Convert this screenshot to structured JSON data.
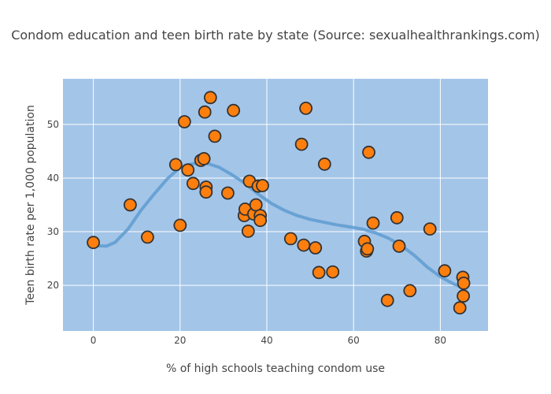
{
  "chart_data": {
    "type": "scatter",
    "title": "Condom education and teen birth rate by state (Source: sexualhealthrankings.com)",
    "xlabel": "% of high schools teaching condom use",
    "ylabel": "Teen birth rate per 1,000 population",
    "xlim": [
      -7,
      91
    ],
    "ylim": [
      11.5,
      58.5
    ],
    "x_ticks": [
      0,
      20,
      40,
      60,
      80
    ],
    "y_ticks": [
      20,
      30,
      40,
      50
    ],
    "grid": true,
    "legend": "none",
    "colors": {
      "plot_bg": "#a3c5e8",
      "grid": "#ffffff",
      "marker_fill": "#ff7f0e",
      "marker_stroke": "#333333",
      "trend": "#5f9bd0"
    },
    "series": [
      {
        "type": "scatter",
        "points": [
          [
            0,
            28
          ],
          [
            8.5,
            35
          ],
          [
            12.5,
            29
          ],
          [
            19,
            42.5
          ],
          [
            20,
            31.2
          ],
          [
            21,
            50.5
          ],
          [
            21.8,
            41.5
          ],
          [
            23,
            39
          ],
          [
            24.8,
            43.3
          ],
          [
            25.7,
            52.3
          ],
          [
            25.5,
            43.6
          ],
          [
            26,
            38.3
          ],
          [
            26,
            37.4
          ],
          [
            27,
            55
          ],
          [
            28,
            47.8
          ],
          [
            31,
            37.2
          ],
          [
            32.3,
            52.6
          ],
          [
            34.8,
            33
          ],
          [
            35,
            34.2
          ],
          [
            35.7,
            30.1
          ],
          [
            36,
            39.4
          ],
          [
            37,
            33.3
          ],
          [
            37.5,
            35
          ],
          [
            38,
            38.5
          ],
          [
            38.5,
            33
          ],
          [
            38.5,
            32.1
          ],
          [
            39,
            38.6
          ],
          [
            45.5,
            28.7
          ],
          [
            48,
            46.3
          ],
          [
            48.5,
            27.5
          ],
          [
            49,
            53
          ],
          [
            51.2,
            27
          ],
          [
            52,
            22.4
          ],
          [
            53.3,
            42.6
          ],
          [
            55.2,
            22.5
          ],
          [
            62.5,
            28.2
          ],
          [
            63,
            26.4
          ],
          [
            63.2,
            26.8
          ],
          [
            63.5,
            44.8
          ],
          [
            64.5,
            31.6
          ],
          [
            67.8,
            17.2
          ],
          [
            70,
            32.6
          ],
          [
            70.5,
            27.3
          ],
          [
            73,
            19
          ],
          [
            77.6,
            30.5
          ],
          [
            81,
            22.7
          ],
          [
            84.5,
            15.8
          ],
          [
            85.2,
            21.5
          ],
          [
            85.4,
            20.4
          ],
          [
            85.3,
            18
          ]
        ]
      },
      {
        "type": "line",
        "points": [
          [
            0,
            27.4
          ],
          [
            3,
            27.3
          ],
          [
            5,
            28
          ],
          [
            8,
            30.5
          ],
          [
            11,
            34
          ],
          [
            14,
            37
          ],
          [
            17,
            39.8
          ],
          [
            20,
            42
          ],
          [
            23,
            42.7
          ],
          [
            26,
            42.8
          ],
          [
            29,
            42
          ],
          [
            32,
            40.6
          ],
          [
            35,
            39
          ],
          [
            38,
            37
          ],
          [
            41,
            35.3
          ],
          [
            44,
            34
          ],
          [
            47,
            33
          ],
          [
            50,
            32.3
          ],
          [
            53,
            31.8
          ],
          [
            56,
            31.3
          ],
          [
            59,
            30.9
          ],
          [
            62,
            30.5
          ],
          [
            65,
            29.8
          ],
          [
            68,
            28.8
          ],
          [
            71,
            27.4
          ],
          [
            74,
            25.6
          ],
          [
            77,
            23.4
          ],
          [
            80,
            21.6
          ],
          [
            83,
            20.3
          ],
          [
            85,
            19.6
          ]
        ]
      }
    ]
  }
}
